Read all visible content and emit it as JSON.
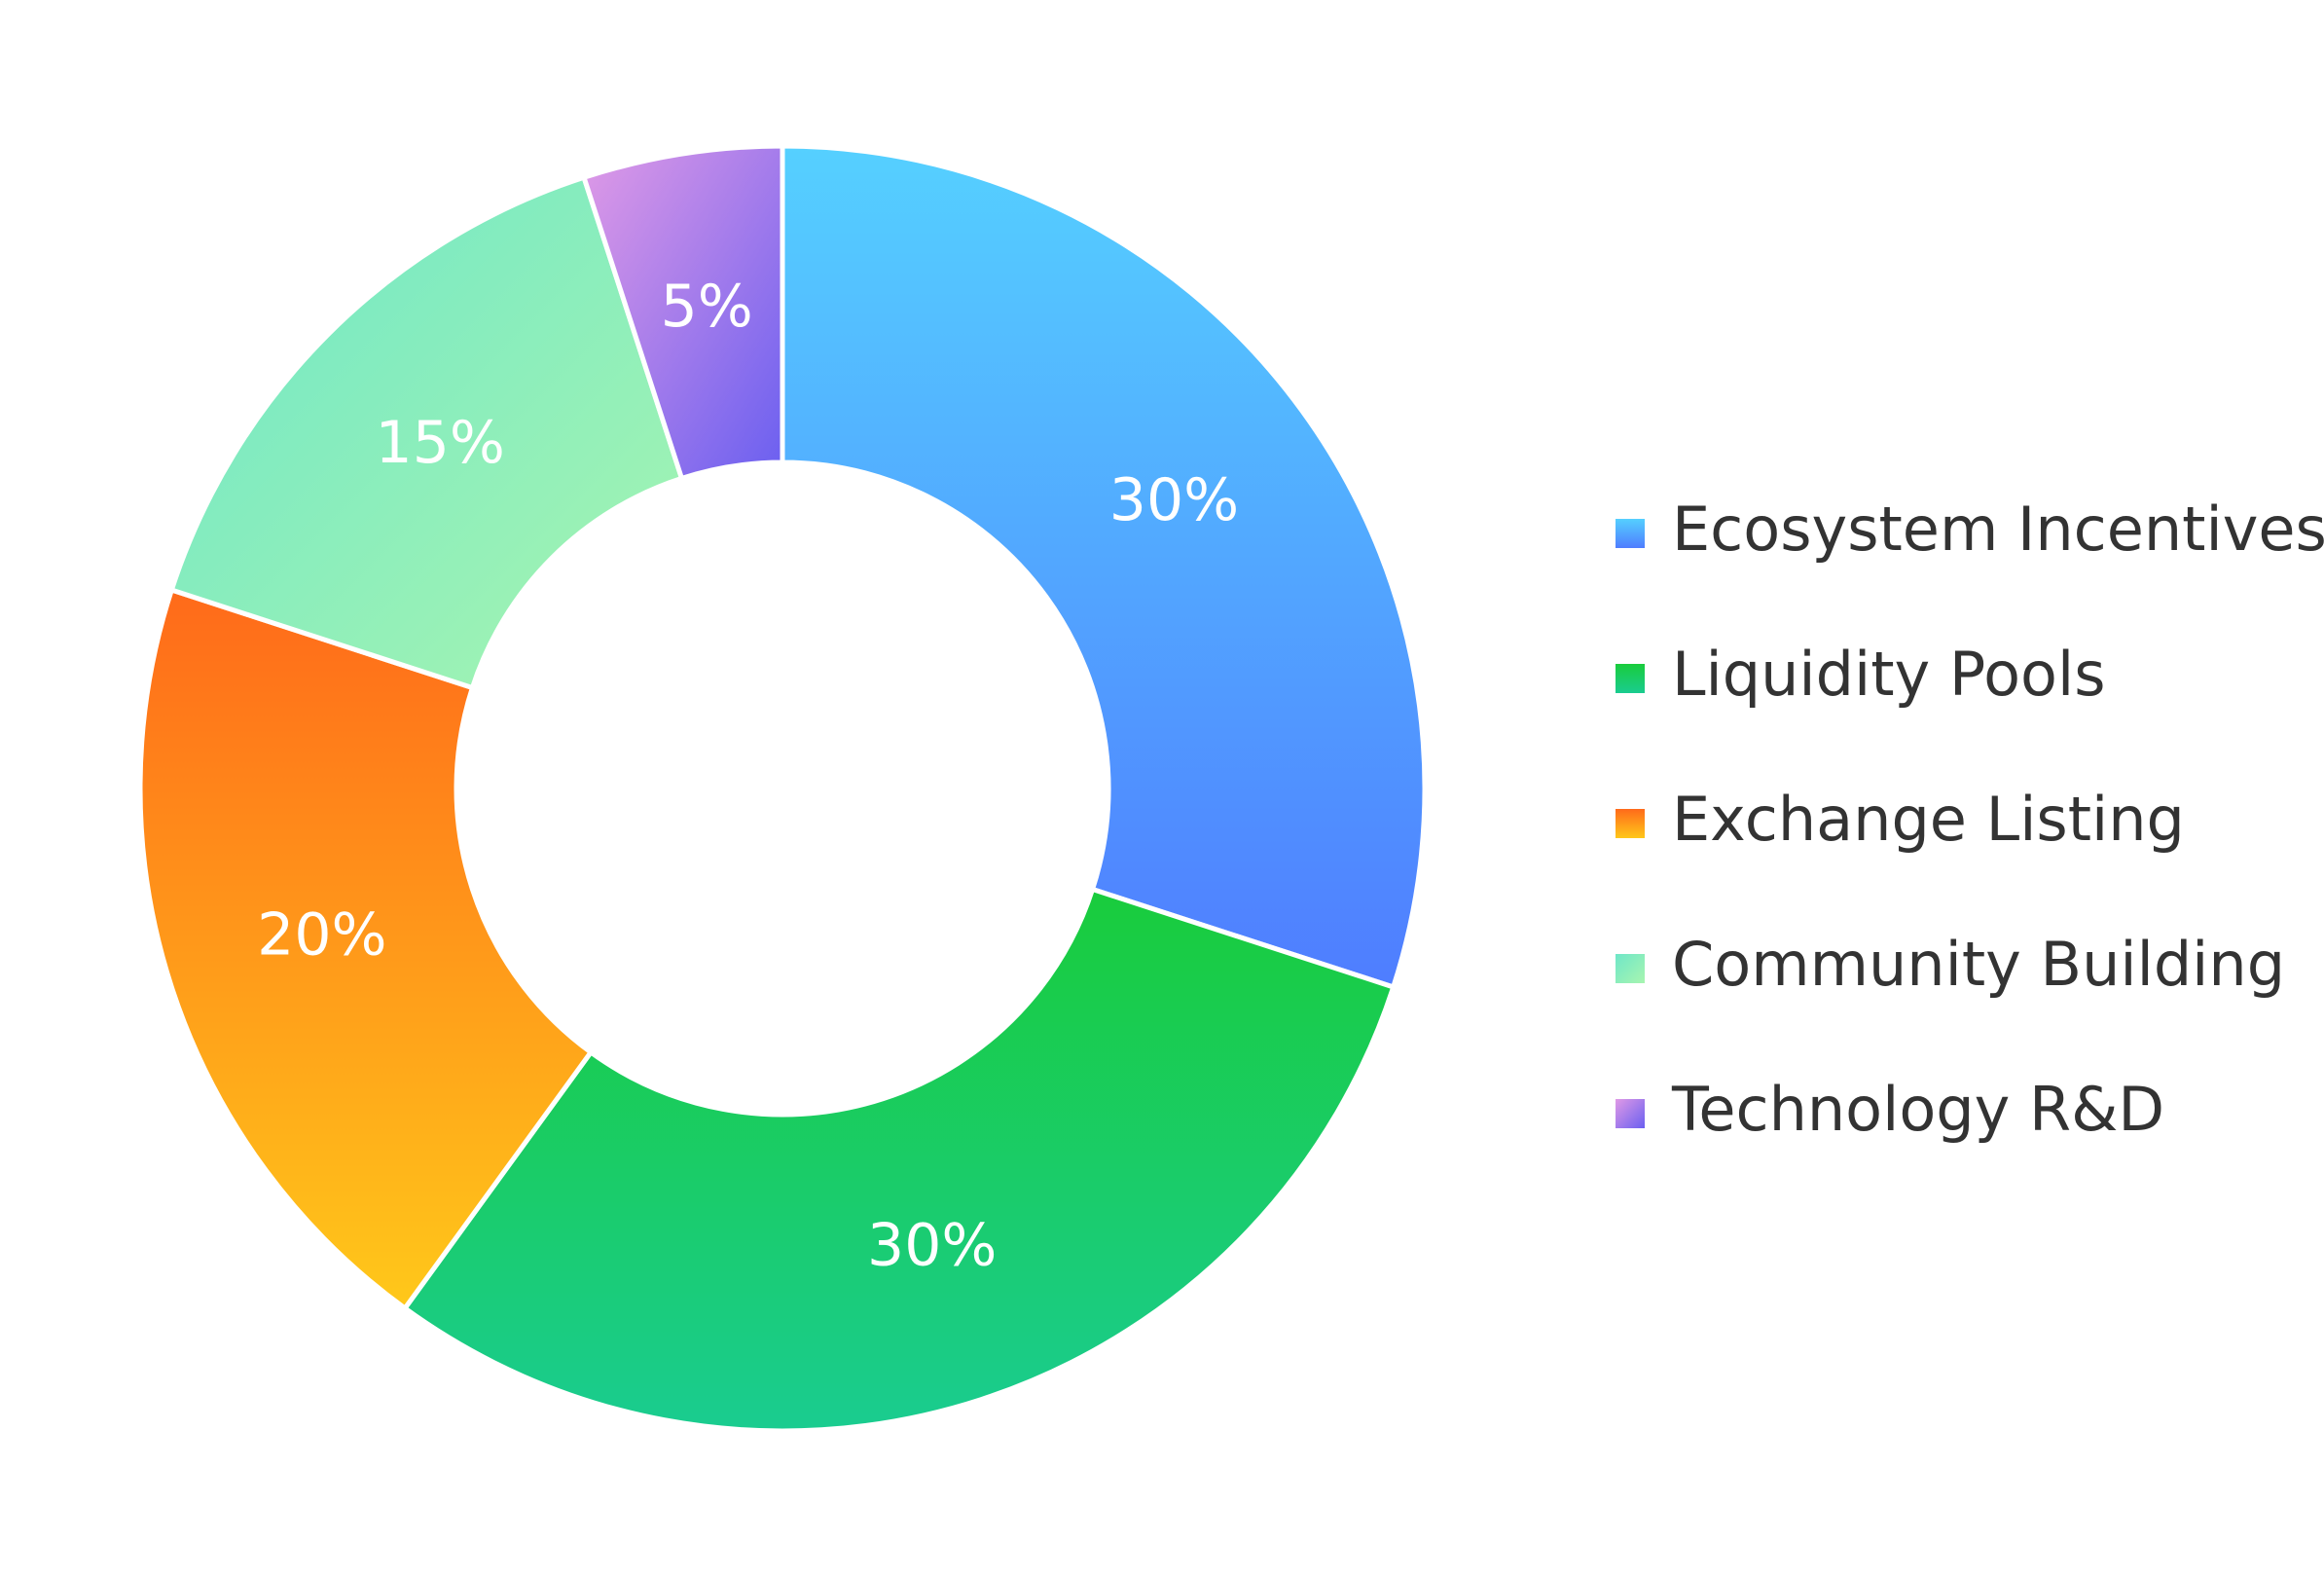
{
  "chart_data": {
    "type": "donut",
    "categories": [
      "Ecosystem Incentives",
      "Liquidity Pools",
      "Exchange Listing",
      "Community Building",
      "Technology R&D"
    ],
    "values": [
      30,
      30,
      20,
      15,
      5
    ],
    "value_labels": [
      "30%",
      "30%",
      "20%",
      "15%",
      "5%"
    ],
    "colors": [
      [
        "#55d0ff",
        "#4f7dff"
      ],
      [
        "#19cc3c",
        "#1acc90"
      ],
      [
        "#ff6a1a",
        "#ffc81a"
      ],
      [
        "#6ee6c8",
        "#a8f5b0"
      ],
      [
        "#e09ae6",
        "#6a5ff0"
      ]
    ],
    "legend": "right"
  }
}
